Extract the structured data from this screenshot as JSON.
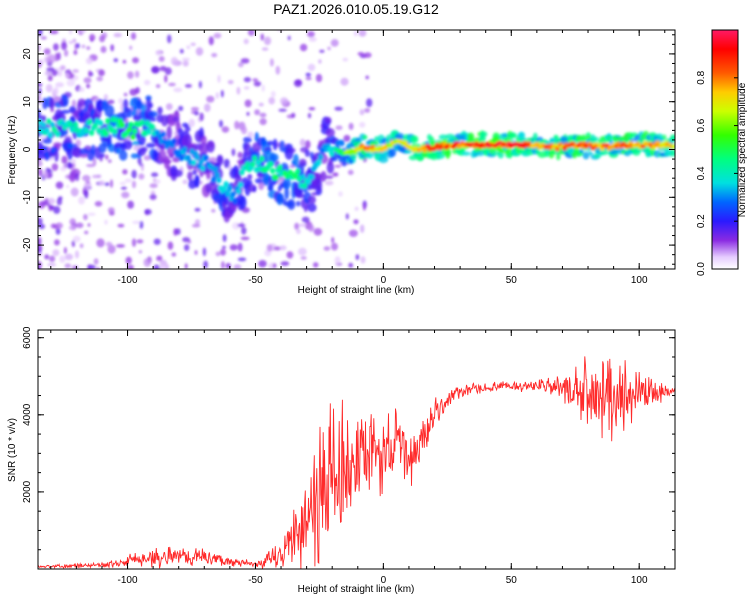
{
  "figure": {
    "title": "PAZ1.2026.010.05.19.G12"
  },
  "chart_data": [
    {
      "type": "heatmap",
      "title": "PAZ1.2026.010.05.19.G12",
      "xlabel": "Height of straight line (km)",
      "ylabel": "Frequency (Hz)",
      "xlim": [
        -135,
        114
      ],
      "ylim": [
        -25,
        25
      ],
      "x_ticks": [
        -100,
        -50,
        0,
        50,
        100
      ],
      "y_ticks": [
        -20,
        -10,
        0,
        10,
        20
      ],
      "tick_labels_x": [
        "-100",
        "-50",
        "0",
        "50",
        "100"
      ],
      "tick_labels_y": [
        "-20",
        "-10",
        "0",
        "10",
        "20"
      ],
      "colorbar": {
        "label": "Normalized spectral amplitude",
        "range": [
          0,
          1
        ],
        "ticks": [
          0.0,
          0.2,
          0.4,
          0.6,
          0.8
        ],
        "tick_labels": [
          "0.0",
          "0.2",
          "0.4",
          "0.6",
          "0.8"
        ]
      },
      "ridge": [
        {
          "x": -112,
          "f": 4.5,
          "amp": 0.4
        },
        {
          "x": -105,
          "f": 5,
          "amp": 0.45
        },
        {
          "x": -98,
          "f": 4,
          "amp": 0.5
        },
        {
          "x": -92,
          "f": 5,
          "amp": 0.45
        },
        {
          "x": -86,
          "f": 2,
          "amp": 0.3
        },
        {
          "x": -80,
          "f": 0,
          "amp": 0.3
        },
        {
          "x": -74,
          "f": -2,
          "amp": 0.35
        },
        {
          "x": -68,
          "f": -3.5,
          "amp": 0.3
        },
        {
          "x": -63,
          "f": -7.5,
          "amp": 0.4
        },
        {
          "x": -58,
          "f": -10,
          "amp": 0.3
        },
        {
          "x": -53,
          "f": -3,
          "amp": 0.4
        },
        {
          "x": -46,
          "f": -3.5,
          "amp": 0.45
        },
        {
          "x": -40,
          "f": -5,
          "amp": 0.45
        },
        {
          "x": -34,
          "f": -6,
          "amp": 0.45
        },
        {
          "x": -28,
          "f": -6.5,
          "amp": 0.35
        },
        {
          "x": -22,
          "f": 1,
          "amp": 0.3
        },
        {
          "x": -15,
          "f": -1,
          "amp": 0.55
        },
        {
          "x": -8,
          "f": 0.5,
          "amp": 0.85
        },
        {
          "x": 0,
          "f": 0,
          "amp": 0.7
        },
        {
          "x": 6,
          "f": 2,
          "amp": 0.65
        },
        {
          "x": 12,
          "f": 0,
          "amp": 0.75
        },
        {
          "x": 20,
          "f": 0.5,
          "amp": 0.9
        },
        {
          "x": 30,
          "f": 1,
          "amp": 0.85
        },
        {
          "x": 40,
          "f": 1,
          "amp": 0.9
        },
        {
          "x": 50,
          "f": 1,
          "amp": 0.9
        },
        {
          "x": 60,
          "f": 1,
          "amp": 0.85
        },
        {
          "x": 68,
          "f": 0.5,
          "amp": 0.8
        },
        {
          "x": 76,
          "f": 1,
          "amp": 0.85
        },
        {
          "x": 85,
          "f": 0.5,
          "amp": 0.8
        },
        {
          "x": 95,
          "f": 1,
          "amp": 0.85
        },
        {
          "x": 105,
          "f": 1,
          "amp": 0.8
        },
        {
          "x": 114,
          "f": 1,
          "amp": 0.75
        }
      ]
    },
    {
      "type": "line",
      "xlabel": "Height of straight line (km)",
      "ylabel": "SNR (10 * v/v)",
      "xlim": [
        -135,
        114
      ],
      "ylim": [
        0,
        6200
      ],
      "x_ticks": [
        -100,
        -50,
        0,
        50,
        100
      ],
      "y_ticks": [
        2000,
        4000,
        6000
      ],
      "tick_labels_x": [
        "-100",
        "-50",
        "0",
        "50",
        "100"
      ],
      "tick_labels_y": [
        "2000",
        "4000",
        "6000"
      ],
      "series": [
        {
          "name": "SNR",
          "color": "#ff2a2a",
          "x": [
            -135,
            -110,
            -100,
            -90,
            -80,
            -70,
            -60,
            -50,
            -45,
            -40,
            -35,
            -30,
            -25,
            -20,
            -15,
            -10,
            -5,
            0,
            5,
            10,
            15,
            20,
            25,
            30,
            40,
            50,
            60,
            70,
            80,
            90,
            100,
            114
          ],
          "mean": [
            60,
            100,
            200,
            300,
            350,
            300,
            200,
            100,
            200,
            400,
            800,
            1400,
            2000,
            2400,
            2600,
            2700,
            2900,
            3000,
            3300,
            2800,
            3300,
            4000,
            4400,
            4600,
            4700,
            4750,
            4750,
            4700,
            4500,
            4500,
            4600,
            4600
          ],
          "spread": [
            40,
            80,
            200,
            300,
            300,
            250,
            150,
            100,
            300,
            500,
            1000,
            1600,
            2400,
            2400,
            2000,
            1700,
            1500,
            1200,
            1000,
            900,
            800,
            500,
            300,
            200,
            150,
            150,
            200,
            400,
            1100,
            1500,
            600,
            100
          ]
        }
      ]
    }
  ]
}
